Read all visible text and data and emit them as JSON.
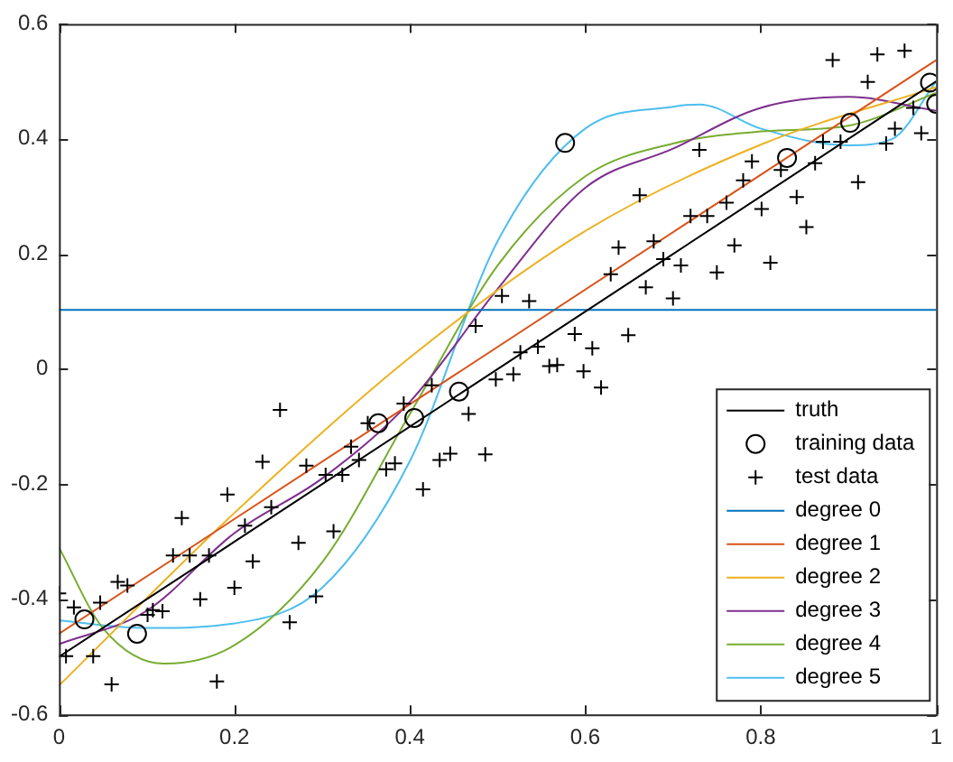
{
  "chart_data": {
    "type": "line",
    "xlim": [
      0,
      1
    ],
    "xticks": [
      0,
      0.2,
      0.4,
      0.6,
      0.8,
      1
    ],
    "ylim": [
      -0.6,
      0.6
    ],
    "yticks": [
      -0.6,
      -0.4,
      -0.2,
      0,
      0.2,
      0.4,
      0.6
    ],
    "grid": false,
    "legend": "bottom right",
    "line_style": "solid",
    "series": [
      {
        "name": "truth",
        "type": "line",
        "marker": "none",
        "color": "#000000",
        "x": [
          0,
          1
        ],
        "values": [
          -0.5,
          0.5
        ]
      },
      {
        "name": "training data",
        "type": "scatter",
        "marker": "circle",
        "color": "#000000",
        "x": [
          0.029,
          0.089,
          0.364,
          0.405,
          0.456,
          0.577,
          0.83,
          0.902,
          0.993,
          1.0
        ],
        "values": [
          -0.435,
          -0.46,
          -0.094,
          -0.085,
          -0.039,
          0.393,
          0.367,
          0.428,
          0.498,
          0.461
        ]
      },
      {
        "name": "test data",
        "type": "scatter",
        "marker": "cross",
        "color": "#000000",
        "x": [
          0,
          0.008,
          0.017,
          0.039,
          0.047,
          0.06,
          0.067,
          0.078,
          0.101,
          0.107,
          0.118,
          0.13,
          0.14,
          0.149,
          0.161,
          0.171,
          0.18,
          0.192,
          0.2,
          0.212,
          0.221,
          0.232,
          0.242,
          0.252,
          0.263,
          0.273,
          0.282,
          0.293,
          0.304,
          0.313,
          0.323,
          0.333,
          0.342,
          0.352,
          0.373,
          0.383,
          0.393,
          0.415,
          0.425,
          0.434,
          0.446,
          0.467,
          0.475,
          0.486,
          0.498,
          0.505,
          0.518,
          0.526,
          0.536,
          0.546,
          0.559,
          0.568,
          0.588,
          0.598,
          0.608,
          0.618,
          0.629,
          0.638,
          0.649,
          0.662,
          0.669,
          0.678,
          0.689,
          0.7,
          0.709,
          0.72,
          0.73,
          0.739,
          0.75,
          0.761,
          0.77,
          0.78,
          0.79,
          0.801,
          0.811,
          0.823,
          0.841,
          0.852,
          0.862,
          0.871,
          0.882,
          0.891,
          0.911,
          0.922,
          0.933,
          0.943,
          0.953,
          0.964,
          0.974,
          0.983
        ],
        "values": [
          -0.39,
          -0.499,
          -0.414,
          -0.499,
          -0.406,
          -0.548,
          -0.37,
          -0.376,
          -0.427,
          -0.419,
          -0.421,
          -0.324,
          -0.259,
          -0.324,
          -0.4,
          -0.324,
          -0.543,
          -0.218,
          -0.38,
          -0.272,
          -0.334,
          -0.161,
          -0.24,
          -0.071,
          -0.44,
          -0.302,
          -0.168,
          -0.395,
          -0.184,
          -0.282,
          -0.184,
          -0.135,
          -0.158,
          -0.094,
          -0.174,
          -0.164,
          -0.06,
          -0.209,
          -0.028,
          -0.158,
          -0.147,
          -0.078,
          0.075,
          -0.148,
          -0.018,
          0.127,
          -0.009,
          0.029,
          0.118,
          0.039,
          0.005,
          0.007,
          0.061,
          -0.004,
          0.036,
          -0.032,
          0.165,
          0.211,
          0.059,
          0.302,
          0.142,
          0.222,
          0.191,
          0.123,
          0.18,
          0.266,
          0.381,
          0.266,
          0.168,
          0.289,
          0.215,
          0.328,
          0.361,
          0.278,
          0.185,
          0.346,
          0.299,
          0.247,
          0.358,
          0.395,
          0.537,
          0.395,
          0.325,
          0.499,
          0.547,
          0.392,
          0.418,
          0.553,
          0.454,
          0.41
        ]
      },
      {
        "name": "degree 0",
        "type": "line",
        "marker": "none",
        "color": "#0072bd",
        "x": [
          0,
          1
        ],
        "values": [
          0.103,
          0.103
        ]
      },
      {
        "name": "degree 1",
        "type": "line",
        "marker": "none",
        "color": "#d95319",
        "x": [
          0,
          1
        ],
        "values": [
          -0.46,
          0.537
        ]
      },
      {
        "name": "degree 2",
        "type": "line",
        "marker": "none",
        "color": "#edb120",
        "x": [
          0,
          0.2,
          0.4,
          0.6,
          0.8,
          1
        ],
        "values": [
          -0.55,
          -0.25,
          0.02,
          0.24,
          0.39,
          0.49
        ]
      },
      {
        "name": "degree 3",
        "type": "line",
        "marker": "none",
        "color": "#7e2f8e",
        "x": [
          0,
          0.1,
          0.2,
          0.3,
          0.4,
          0.5,
          0.6,
          0.7,
          0.8,
          0.9,
          1
        ],
        "values": [
          -0.478,
          -0.42,
          -0.285,
          -0.19,
          -0.057,
          0.139,
          0.315,
          0.383,
          0.454,
          0.473,
          0.449
        ]
      },
      {
        "name": "degree 4",
        "type": "line",
        "marker": "none",
        "color": "#77ac30",
        "x": [
          0,
          0.05,
          0.12,
          0.2,
          0.3,
          0.4,
          0.5,
          0.6,
          0.7,
          0.8,
          0.9,
          1
        ],
        "values": [
          -0.31,
          -0.45,
          -0.512,
          -0.48,
          -0.336,
          -0.078,
          0.18,
          0.335,
          0.392,
          0.413,
          0.423,
          0.48
        ]
      },
      {
        "name": "degree 5",
        "type": "line",
        "marker": "none",
        "color": "#4dbeee",
        "x": [
          0,
          0.1,
          0.2,
          0.3,
          0.4,
          0.5,
          0.6,
          0.7,
          0.73,
          0.8,
          0.9,
          0.95,
          1
        ],
        "values": [
          -0.437,
          -0.45,
          -0.442,
          -0.38,
          -0.16,
          0.222,
          0.418,
          0.456,
          0.46,
          0.418,
          0.389,
          0.4,
          0.5
        ]
      }
    ]
  }
}
